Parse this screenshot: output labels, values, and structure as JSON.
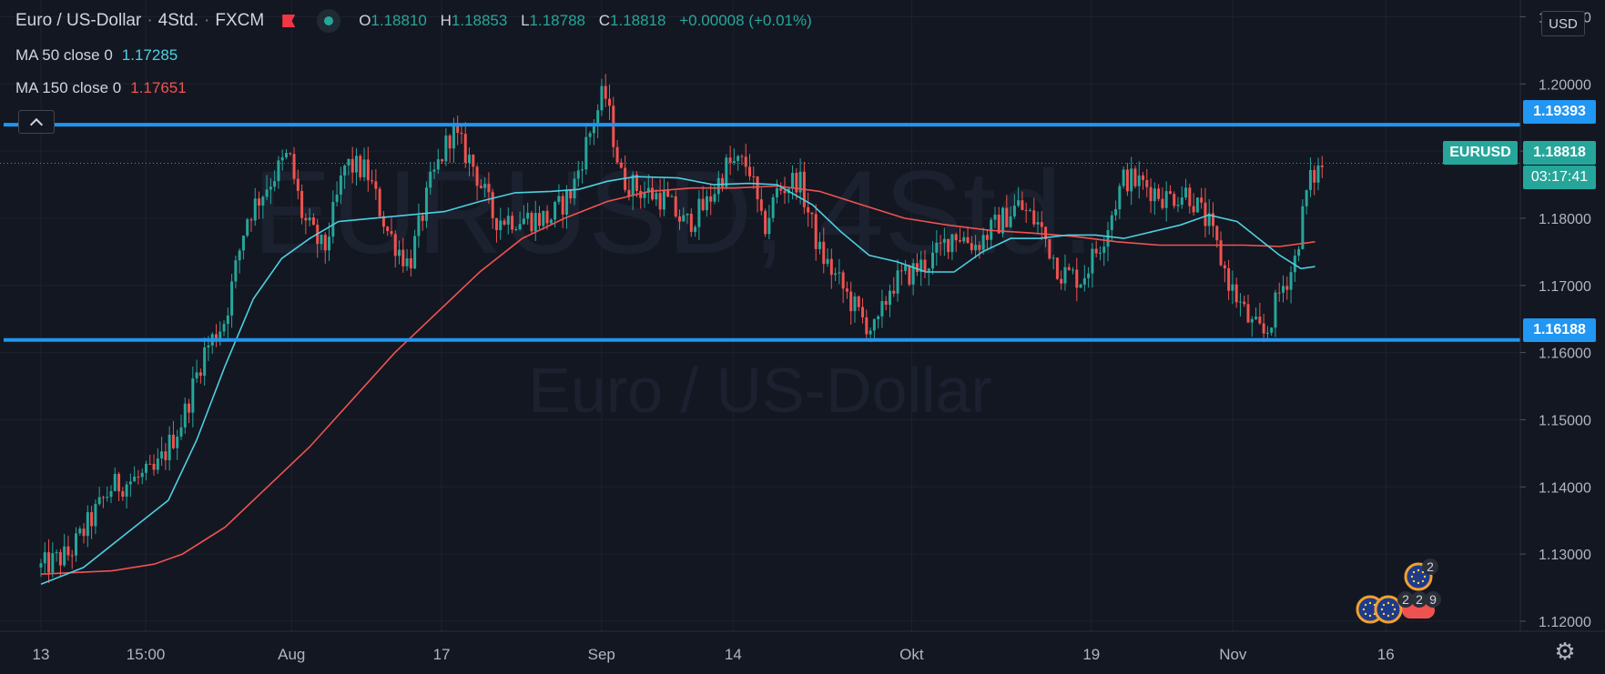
{
  "header": {
    "symbol_name": "Euro / US-Dollar",
    "interval": "4Std.",
    "exchange": "FXCM",
    "ohlc": {
      "o_label": "O",
      "o": "1.18810",
      "h_label": "H",
      "h": "1.18853",
      "l_label": "L",
      "l": "1.18788",
      "c_label": "C",
      "c": "1.18818",
      "change": "+0.00008 (+0.01%)"
    }
  },
  "indicators": [
    {
      "label": "MA 50 close 0",
      "value": "1.17285",
      "color": "#4dd0e1"
    },
    {
      "label": "MA 150 close 0",
      "value": "1.17651",
      "color": "#ef5350"
    }
  ],
  "watermark": {
    "line1": "EURUSD, 4Std.",
    "line2": "Euro / US-Dollar"
  },
  "price_axis": {
    "currency": "USD"
  },
  "price_tags": {
    "resistance": "1.19393",
    "support": "1.16188",
    "symbol": "EURUSD",
    "last": "1.18818",
    "countdown": "03:17:41"
  },
  "event_badges": {
    "top_count": "2",
    "bottom_counts": [
      "2",
      "2",
      "9"
    ]
  },
  "colors": {
    "bg": "#131722",
    "up": "#26a69a",
    "down": "#ef5350",
    "level": "#2196f3",
    "ma50": "#4dd0e1",
    "ma150": "#ef5350",
    "grid": "#1e222d"
  },
  "chart_data": {
    "type": "candlestick",
    "title": "Euro / US-Dollar",
    "interval": "4Std.",
    "ylim": [
      1.1185,
      1.2125
    ],
    "y_ticks": [
      1.12,
      1.13,
      1.14,
      1.15,
      1.16,
      1.17,
      1.18,
      1.19,
      1.2,
      1.21
    ],
    "y_tick_labels": [
      "1.12000",
      "1.13000",
      "1.14000",
      "1.15000",
      "1.16000",
      "1.17000",
      "1.18000",
      "1.19000",
      "1.20000",
      "1.21000"
    ],
    "x_ticks": [
      {
        "label": "13",
        "pos": 0.0
      },
      {
        "label": "15:00",
        "pos": 0.074
      },
      {
        "label": "Aug",
        "pos": 0.177
      },
      {
        "label": "17",
        "pos": 0.283
      },
      {
        "label": "Sep",
        "pos": 0.396
      },
      {
        "label": "14",
        "pos": 0.489
      },
      {
        "label": "Okt",
        "pos": 0.615
      },
      {
        "label": "19",
        "pos": 0.742
      },
      {
        "label": "Nov",
        "pos": 0.842
      },
      {
        "label": "16",
        "pos": 0.95
      }
    ],
    "horizontal_levels": [
      1.19393,
      1.16188
    ],
    "last_price": 1.18818,
    "price_path": [
      [
        0,
        1.128
      ],
      [
        0.02,
        1.13
      ],
      [
        0.05,
        1.14
      ],
      [
        0.08,
        1.142
      ],
      [
        0.1,
        1.15
      ],
      [
        0.115,
        1.16
      ],
      [
        0.13,
        1.165
      ],
      [
        0.145,
        1.18
      ],
      [
        0.16,
        1.185
      ],
      [
        0.175,
        1.1895
      ],
      [
        0.185,
        1.18
      ],
      [
        0.2,
        1.175
      ],
      [
        0.215,
        1.188
      ],
      [
        0.23,
        1.187
      ],
      [
        0.245,
        1.178
      ],
      [
        0.26,
        1.173
      ],
      [
        0.275,
        1.185
      ],
      [
        0.29,
        1.193
      ],
      [
        0.305,
        1.188
      ],
      [
        0.32,
        1.18
      ],
      [
        0.34,
        1.18
      ],
      [
        0.36,
        1.18
      ],
      [
        0.375,
        1.184
      ],
      [
        0.385,
        1.191
      ],
      [
        0.398,
        1.199
      ],
      [
        0.41,
        1.186
      ],
      [
        0.425,
        1.184
      ],
      [
        0.44,
        1.183
      ],
      [
        0.455,
        1.179
      ],
      [
        0.47,
        1.182
      ],
      [
        0.485,
        1.188
      ],
      [
        0.5,
        1.188
      ],
      [
        0.51,
        1.178
      ],
      [
        0.52,
        1.184
      ],
      [
        0.535,
        1.186
      ],
      [
        0.55,
        1.175
      ],
      [
        0.565,
        1.17
      ],
      [
        0.58,
        1.165
      ],
      [
        0.59,
        1.163
      ],
      [
        0.6,
        1.17
      ],
      [
        0.615,
        1.172
      ],
      [
        0.63,
        1.174
      ],
      [
        0.645,
        1.178
      ],
      [
        0.66,
        1.176
      ],
      [
        0.675,
        1.179
      ],
      [
        0.69,
        1.182
      ],
      [
        0.705,
        1.179
      ],
      [
        0.72,
        1.172
      ],
      [
        0.735,
        1.171
      ],
      [
        0.75,
        1.177
      ],
      [
        0.765,
        1.186
      ],
      [
        0.78,
        1.185
      ],
      [
        0.795,
        1.183
      ],
      [
        0.81,
        1.184
      ],
      [
        0.825,
        1.179
      ],
      [
        0.84,
        1.17
      ],
      [
        0.855,
        1.164
      ],
      [
        0.865,
        1.1625
      ],
      [
        0.875,
        1.169
      ],
      [
        0.885,
        1.173
      ],
      [
        0.895,
        1.185
      ],
      [
        0.905,
        1.188
      ]
    ],
    "series": [
      {
        "name": "MA 50 close 0",
        "color": "#4dd0e1",
        "points": [
          [
            0,
            1.1255
          ],
          [
            0.03,
            1.128
          ],
          [
            0.06,
            1.133
          ],
          [
            0.09,
            1.138
          ],
          [
            0.11,
            1.147
          ],
          [
            0.13,
            1.158
          ],
          [
            0.15,
            1.168
          ],
          [
            0.17,
            1.174
          ],
          [
            0.19,
            1.177
          ],
          [
            0.21,
            1.1795
          ],
          [
            0.235,
            1.18
          ],
          [
            0.26,
            1.1805
          ],
          [
            0.285,
            1.181
          ],
          [
            0.31,
            1.1825
          ],
          [
            0.335,
            1.1838
          ],
          [
            0.36,
            1.184
          ],
          [
            0.38,
            1.1843
          ],
          [
            0.4,
            1.1855
          ],
          [
            0.42,
            1.1862
          ],
          [
            0.45,
            1.186
          ],
          [
            0.475,
            1.185
          ],
          [
            0.5,
            1.1852
          ],
          [
            0.52,
            1.185
          ],
          [
            0.545,
            1.182
          ],
          [
            0.565,
            1.178
          ],
          [
            0.585,
            1.1745
          ],
          [
            0.605,
            1.1735
          ],
          [
            0.625,
            1.172
          ],
          [
            0.645,
            1.172
          ],
          [
            0.665,
            1.175
          ],
          [
            0.685,
            1.177
          ],
          [
            0.705,
            1.177
          ],
          [
            0.725,
            1.1775
          ],
          [
            0.745,
            1.1775
          ],
          [
            0.765,
            1.177
          ],
          [
            0.785,
            1.178
          ],
          [
            0.805,
            1.179
          ],
          [
            0.825,
            1.1805
          ],
          [
            0.845,
            1.1795
          ],
          [
            0.86,
            1.177
          ],
          [
            0.875,
            1.1745
          ],
          [
            0.89,
            1.1725
          ],
          [
            0.9,
            1.1728
          ]
        ]
      },
      {
        "name": "MA 150 close 0",
        "color": "#ef5350",
        "points": [
          [
            0,
            1.127
          ],
          [
            0.05,
            1.1275
          ],
          [
            0.08,
            1.1285
          ],
          [
            0.1,
            1.13
          ],
          [
            0.13,
            1.134
          ],
          [
            0.16,
            1.14
          ],
          [
            0.19,
            1.146
          ],
          [
            0.22,
            1.153
          ],
          [
            0.25,
            1.16
          ],
          [
            0.28,
            1.166
          ],
          [
            0.31,
            1.172
          ],
          [
            0.34,
            1.177
          ],
          [
            0.37,
            1.18
          ],
          [
            0.4,
            1.1825
          ],
          [
            0.43,
            1.184
          ],
          [
            0.46,
            1.1845
          ],
          [
            0.49,
            1.1845
          ],
          [
            0.52,
            1.1848
          ],
          [
            0.55,
            1.184
          ],
          [
            0.58,
            1.182
          ],
          [
            0.61,
            1.18
          ],
          [
            0.64,
            1.179
          ],
          [
            0.67,
            1.1782
          ],
          [
            0.7,
            1.1778
          ],
          [
            0.73,
            1.1773
          ],
          [
            0.76,
            1.1765
          ],
          [
            0.79,
            1.176
          ],
          [
            0.82,
            1.176
          ],
          [
            0.85,
            1.176
          ],
          [
            0.875,
            1.1758
          ],
          [
            0.9,
            1.1765
          ]
        ]
      }
    ]
  }
}
